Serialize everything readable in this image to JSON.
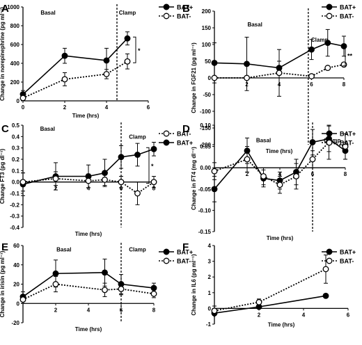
{
  "chart_data": [
    {
      "letter": "A",
      "type": "line",
      "ylabel": "Change in norepinephrine (pg ml⁻¹)",
      "xlabel": "Time (hrs)",
      "xlim": [
        0,
        6
      ],
      "xticks": [
        0,
        2,
        4,
        6
      ],
      "ylim": [
        0,
        1000
      ],
      "yticks": [
        0,
        200,
        400,
        600,
        800,
        1000
      ],
      "x_axis_y": 0,
      "x_axis_at_top": false,
      "clamp_x": 4.5,
      "annotations": [
        {
          "text": "Basal",
          "x": 1.2,
          "y": 940
        },
        {
          "text": "Clamp",
          "x": 5.0,
          "y": 940
        }
      ],
      "significance": "*",
      "legend": [
        "BAT+",
        "BAT-"
      ],
      "series": [
        {
          "name": "BAT+",
          "style": "solid",
          "marker": "filled",
          "x": [
            0,
            2,
            4,
            5
          ],
          "y": [
            70,
            480,
            430,
            665
          ],
          "err": [
            40,
            80,
            130,
            70
          ]
        },
        {
          "name": "BAT-",
          "style": "dotted",
          "marker": "open",
          "x": [
            0,
            2,
            4,
            5
          ],
          "y": [
            30,
            230,
            285,
            420
          ],
          "err": [
            30,
            70,
            50,
            80
          ]
        }
      ]
    },
    {
      "letter": "B",
      "type": "line",
      "ylabel": "Change in FGF21 (pg ml⁻¹)",
      "xlabel": "Time (hrs)",
      "xlim": [
        0,
        8
      ],
      "xticks": [
        2,
        4,
        6,
        8
      ],
      "ylim": [
        -200,
        200
      ],
      "yticks": [
        -200,
        -150,
        -100,
        -50,
        0,
        50,
        100,
        150,
        200
      ],
      "x_axis_y": 0,
      "x_axis_at_top": false,
      "clamp_x": 5.8,
      "annotations": [
        {
          "text": "Basal",
          "x": 2.5,
          "y": 160
        },
        {
          "text": "Clamp",
          "x": 6.5,
          "y": 115
        }
      ],
      "significance": "**",
      "legend": [
        "BAT+",
        "BAT-"
      ],
      "series": [
        {
          "name": "BAT+",
          "style": "solid",
          "marker": "filled",
          "x": [
            0,
            2,
            4,
            6,
            7,
            8
          ],
          "y": [
            45,
            42,
            30,
            85,
            105,
            95
          ],
          "err": [
            60,
            80,
            20,
            30,
            40,
            30
          ]
        },
        {
          "name": "BAT-",
          "style": "dotted",
          "marker": "open",
          "x": [
            0,
            2,
            4,
            6,
            7,
            8
          ],
          "y": [
            0,
            0,
            15,
            5,
            30,
            40
          ],
          "err": [
            0,
            0,
            70,
            0,
            0,
            0
          ]
        }
      ]
    },
    {
      "letter": "C",
      "type": "line",
      "ylabel": "Change FT3 (pg dl⁻¹)",
      "xlabel": "Time (hrs)",
      "xlim": [
        0,
        8
      ],
      "xticks": [
        2,
        4,
        6,
        8
      ],
      "ylim": [
        -0.4,
        0.5
      ],
      "yticks": [
        -0.4,
        -0.3,
        -0.2,
        -0.1,
        0.0,
        0.1,
        0.2,
        0.3,
        0.4,
        0.5
      ],
      "x_axis_y": 0,
      "x_axis_at_top": false,
      "clamp_x": 6,
      "annotations": [
        {
          "text": "Basal",
          "x": 1.5,
          "y": 0.47
        },
        {
          "text": "Clamp",
          "x": 7.0,
          "y": 0.4
        }
      ],
      "significance": "*",
      "legend": [
        "BAT-",
        "BAT+"
      ],
      "series": [
        {
          "name": "BAT+",
          "style": "solid",
          "marker": "filled",
          "x": [
            0,
            2,
            4,
            5,
            6,
            7,
            8
          ],
          "y": [
            -0.02,
            0.05,
            0.05,
            0.08,
            0.22,
            0.24,
            0.29
          ],
          "err": [
            0.1,
            0.12,
            0.1,
            0.12,
            0.1,
            0.1,
            0.06
          ]
        },
        {
          "name": "BAT-",
          "style": "dotted",
          "marker": "open",
          "x": [
            0,
            2,
            4,
            5,
            6,
            7,
            8
          ],
          "y": [
            0.0,
            0.03,
            0.01,
            0.02,
            0.0,
            -0.1,
            0.0
          ],
          "err": [
            0.08,
            0.06,
            0.06,
            0.05,
            0.05,
            0.1,
            0.05
          ]
        }
      ]
    },
    {
      "letter": "D",
      "type": "line",
      "ylabel": "Change in FT4 (mg dl⁻¹)",
      "xlabel": "Time (hrs)",
      "xlim": [
        0,
        8
      ],
      "xticks": [
        2,
        4,
        6,
        8
      ],
      "ylim": [
        -0.15,
        0.1
      ],
      "yticks": [
        -0.15,
        -0.1,
        -0.05,
        0.0,
        0.05,
        0.1
      ],
      "x_axis_y": 0,
      "x_axis_at_top": false,
      "clamp_x": 6,
      "annotations": [
        {
          "text": "Basal",
          "x": 3.0,
          "y": 0.065
        },
        {
          "text": "Clamp",
          "x": 7.2,
          "y": 0.065
        }
      ],
      "significance": "",
      "legend": [
        "BAT+",
        "BAT-"
      ],
      "series": [
        {
          "name": "BAT+",
          "style": "solid",
          "marker": "filled",
          "x": [
            0,
            2,
            3,
            4,
            5,
            6,
            7,
            8
          ],
          "y": [
            -0.05,
            0.04,
            -0.025,
            -0.03,
            -0.01,
            0.06,
            0.068,
            0.04
          ],
          "err": [
            0.03,
            0.03,
            0.02,
            0.02,
            0.03,
            0.03,
            0.03,
            0.02
          ]
        },
        {
          "name": "BAT-",
          "style": "dotted",
          "marker": "open",
          "x": [
            0,
            2,
            3,
            4,
            5,
            6,
            7,
            8
          ],
          "y": [
            -0.008,
            0.02,
            -0.02,
            -0.04,
            -0.02,
            0.02,
            0.06,
            0.05
          ],
          "err": [
            0.02,
            0.03,
            0.02,
            0.02,
            0.03,
            0.02,
            0.04,
            0.03
          ]
        }
      ]
    },
    {
      "letter": "E",
      "type": "line",
      "ylabel": "Change in irisin (pg ml⁻¹)",
      "xlabel": "Time (hrs)",
      "xlim": [
        0,
        8
      ],
      "xticks": [
        2,
        4,
        6,
        8
      ],
      "ylim": [
        -20,
        60
      ],
      "yticks": [
        -20,
        0,
        20,
        40,
        60
      ],
      "x_axis_y": 0,
      "x_axis_at_top": false,
      "clamp_x": 6,
      "annotations": [
        {
          "text": "Basal",
          "x": 2.5,
          "y": 56
        },
        {
          "text": "Clamp",
          "x": 7.0,
          "y": 56
        }
      ],
      "significance": "",
      "legend": [
        "BAT+",
        "BAT-"
      ],
      "series": [
        {
          "name": "BAT+",
          "style": "solid",
          "marker": "filled",
          "x": [
            0,
            2,
            5,
            6,
            8
          ],
          "y": [
            7,
            31,
            32,
            20,
            16
          ],
          "err": [
            5,
            14,
            14,
            10,
            5
          ]
        },
        {
          "name": "BAT-",
          "style": "dotted",
          "marker": "open",
          "x": [
            0,
            2,
            5,
            6,
            8
          ],
          "y": [
            4,
            20,
            14,
            15,
            10
          ],
          "err": [
            4,
            8,
            7,
            6,
            4
          ]
        }
      ]
    },
    {
      "letter": "F",
      "type": "line",
      "ylabel": "Change in IL6 (pg ml⁻¹)",
      "xlabel": "Time (hrs)",
      "xlim": [
        0,
        6
      ],
      "xticks": [
        0,
        2,
        4,
        6
      ],
      "ylim": [
        -1,
        4
      ],
      "yticks": [
        -1,
        0,
        1,
        2,
        3,
        4
      ],
      "x_axis_y": 0,
      "x_axis_at_top": true,
      "clamp_x": null,
      "annotations": [],
      "significance": "",
      "legend": [
        "BAT+",
        "BAT-"
      ],
      "series": [
        {
          "name": "BAT+",
          "style": "solid",
          "marker": "filled",
          "x": [
            0,
            2,
            5
          ],
          "y": [
            -0.3,
            0.1,
            0.8
          ],
          "err": [
            0,
            0,
            0
          ]
        },
        {
          "name": "BAT-",
          "style": "dotted",
          "marker": "open",
          "x": [
            0,
            2,
            5
          ],
          "y": [
            -0.15,
            0.4,
            2.5
          ],
          "err": [
            0.3,
            0.2,
            0.9
          ]
        }
      ]
    }
  ]
}
